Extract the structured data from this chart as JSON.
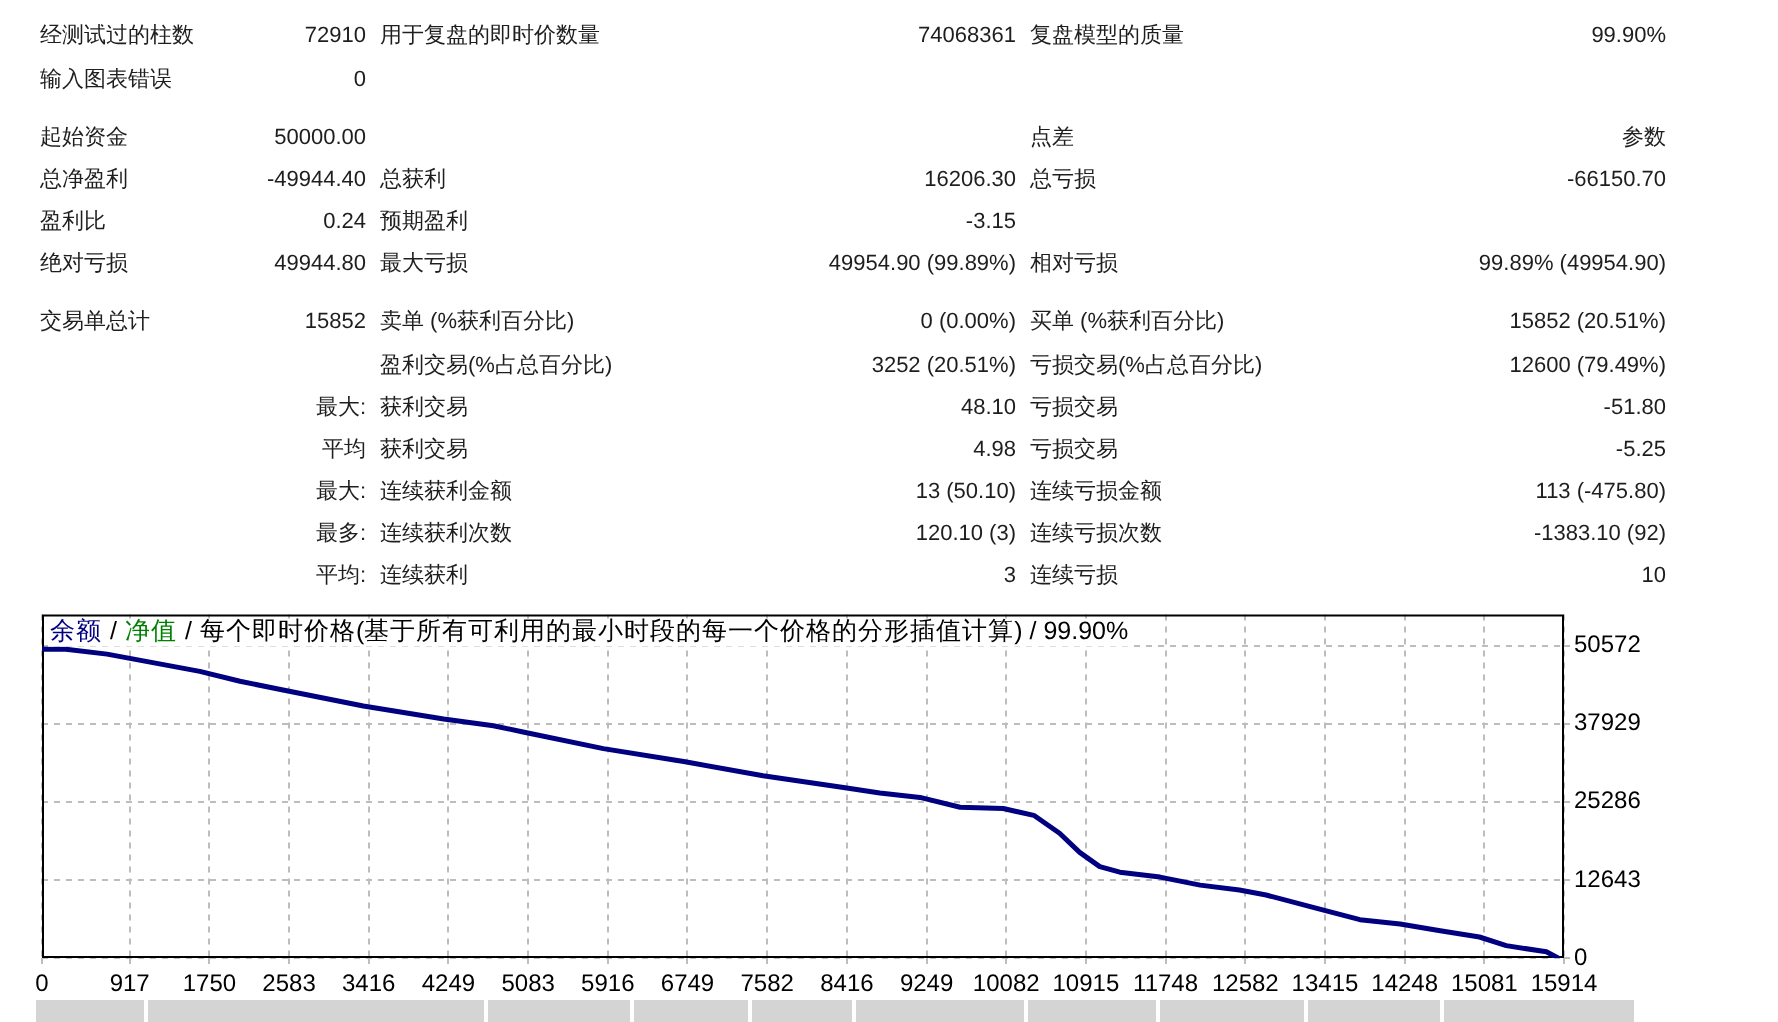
{
  "chart_data": [
    {
      "type": "other",
      "annotations": [
        "经测试过的柱数",
        "72910",
        "用于复盘的即时价数量",
        "74068361",
        "复盘模型的质量",
        "99.90%",
        "输入图表错误",
        "0",
        "起始资金",
        "50000.00",
        "点差",
        "参数",
        "总净盈利",
        "-49944.40",
        "总获利",
        "16206.30",
        "总亏损",
        "-66150.70",
        "盈利比",
        "0.24",
        "预期盈利",
        "-3.15",
        "绝对亏损",
        "49944.80",
        "最大亏损",
        "49954.90 (99.89%)",
        "相对亏损",
        "99.89% (49954.90)",
        "交易单总计",
        "15852",
        "卖单 (%获利百分比)",
        "0 (0.00%)",
        "买单 (%获利百分比)",
        "15852 (20.51%)",
        "盈利交易(%占总百分比)",
        "3252 (20.51%)",
        "亏损交易(%占总百分比)",
        "12600 (79.49%)",
        "最大:",
        "获利交易",
        "48.10",
        "亏损交易",
        "-51.80",
        "平均",
        "获利交易",
        "4.98",
        "亏损交易",
        "-5.25",
        "最大:",
        "连续获利金额",
        "13 (50.10)",
        "连续亏损金额",
        "113 (-475.80)",
        "最多:",
        "连续获利次数",
        "120.10 (3)",
        "连续亏损次数",
        "-1383.10 (92)",
        "平均:",
        "连续获利",
        "3",
        "连续亏损",
        "10"
      ]
    },
    {
      "type": "line",
      "title": "每个即时价格(基于所有可利用的最小时段的每一个价格的分形插值计算) / 99.90%",
      "annotations": [
        "/",
        "/"
      ],
      "x": [
        0,
        250,
        680,
        1650,
        2070,
        2520,
        3360,
        4200,
        4720,
        5030,
        5870,
        6710,
        7540,
        8380,
        8760,
        9180,
        9600,
        10050,
        10370,
        10640,
        10850,
        11060,
        11270,
        11690,
        12110,
        12520,
        12800,
        13360,
        13780,
        14200,
        14620,
        15030,
        15310,
        15730,
        15852
      ],
      "series": [
        {
          "name": "余额",
          "color": "#000080",
          "values": [
            50000,
            50000,
            49200,
            46400,
            44800,
            43400,
            40800,
            38700,
            37600,
            36600,
            33900,
            31800,
            29500,
            27600,
            26700,
            26000,
            24400,
            24200,
            23100,
            20200,
            17100,
            14800,
            13900,
            13100,
            11800,
            11000,
            10200,
            7900,
            6200,
            5500,
            4400,
            3400,
            2000,
            1000,
            0
          ]
        },
        {
          "name": "净值",
          "color": "#008000",
          "values": [
            null,
            null,
            null,
            null,
            null,
            null,
            null,
            null,
            null,
            null,
            null,
            null,
            null,
            null,
            null,
            null,
            null,
            null,
            null,
            null,
            null,
            null,
            null,
            null,
            null,
            null,
            null,
            null,
            null,
            null,
            null,
            null,
            null,
            null,
            null
          ]
        }
      ],
      "xlim": [
        0,
        15914
      ],
      "xticks": [
        0,
        917,
        1750,
        2583,
        3416,
        4249,
        5083,
        5916,
        6749,
        7582,
        8416,
        9249,
        10082,
        10915,
        11748,
        12582,
        13415,
        14248,
        15081,
        15914
      ],
      "ylim": [
        0,
        55629
      ],
      "yticks": [
        0,
        12643,
        25286,
        37929,
        50572
      ],
      "grid": true,
      "legend": "top left",
      "marker": "none"
    }
  ]
}
